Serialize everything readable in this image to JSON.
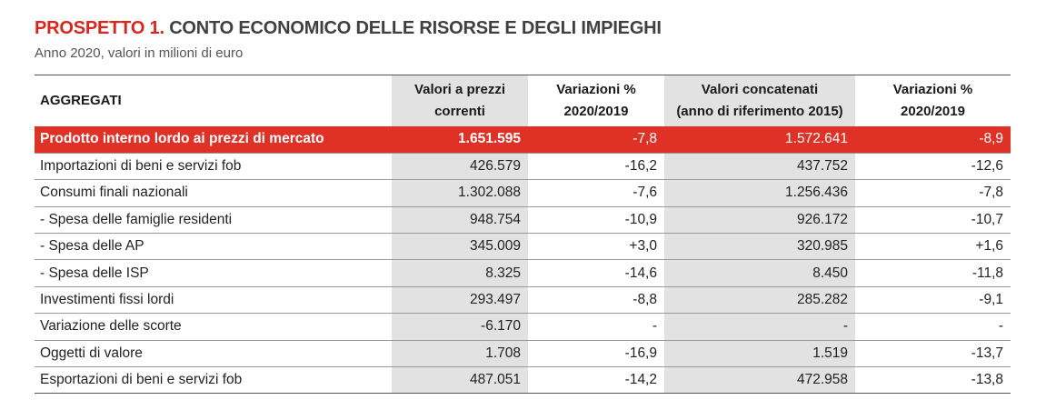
{
  "title": {
    "prefix": "PROSPETTO 1.",
    "main": "CONTO ECONOMICO DELLE RISORSE E DEGLI IMPIEGHI",
    "subtitle": "Anno 2020, valori in milioni di euro"
  },
  "table": {
    "headers": [
      {
        "line1": "AGGREGATI",
        "line2": ""
      },
      {
        "line1": "Valori a prezzi",
        "line2": "correnti"
      },
      {
        "line1": "Variazioni %",
        "line2": "2020/2019"
      },
      {
        "line1": "Valori concatenati",
        "line2": "(anno di riferimento 2015)"
      },
      {
        "line1": "Variazioni %",
        "line2": "2020/2019"
      }
    ],
    "rows": [
      [
        "Prodotto interno lordo ai prezzi di mercato",
        "1.651.595",
        "-7,8",
        "1.572.641",
        "-8,9"
      ],
      [
        "Importazioni di beni e servizi fob",
        "426.579",
        "-16,2",
        "437.752",
        "-12,6"
      ],
      [
        "Consumi finali nazionali",
        "1.302.088",
        "-7,6",
        "1.256.436",
        "-7,8"
      ],
      [
        "- Spesa delle famiglie residenti",
        "948.754",
        "-10,9",
        "926.172",
        "-10,7"
      ],
      [
        "- Spesa delle AP",
        "345.009",
        "+3,0",
        "320.985",
        "+1,6"
      ],
      [
        "- Spesa delle ISP",
        "8.325",
        "-14,6",
        "8.450",
        "-11,8"
      ],
      [
        "Investimenti fissi lordi",
        "293.497",
        "-8,8",
        "285.282",
        "-9,1"
      ],
      [
        "Variazione delle scorte",
        "-6.170",
        "-",
        "-",
        "-"
      ],
      [
        "Oggetti di valore",
        "1.708",
        "-16,9",
        "1.519",
        "-13,7"
      ],
      [
        "Esportazioni di beni e servizi fob",
        "487.051",
        "-14,2",
        "472.958",
        "-13,8"
      ]
    ]
  },
  "colors": {
    "accent_red": "#d9261c",
    "highlight_row": "#e03127",
    "shaded_column": "#e2e2e2"
  }
}
